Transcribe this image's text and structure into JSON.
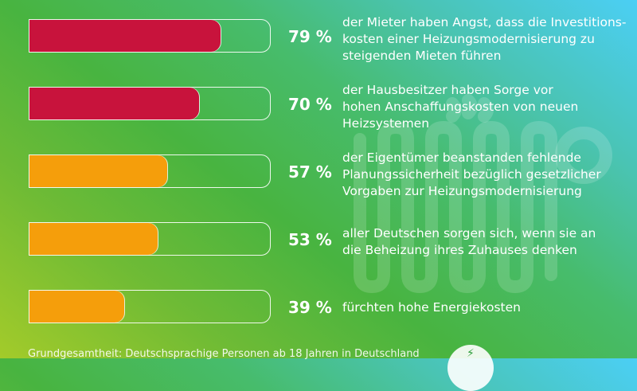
{
  "chart_data": {
    "type": "bar",
    "orientation": "horizontal",
    "xlim": [
      0,
      100
    ],
    "unit": "%",
    "categories": [
      "der Mieter haben Angst, dass die Investitions-\nkosten einer Heizungsmodernisierung zu\nsteigenden Mieten führen",
      "der Hausbesitzer haben Sorge vor\nhohen Anschaffungskosten von neuen\nHeizsystemen",
      "der Eigentümer beanstanden fehlende\nPlanungssicherheit bezüglich gesetzlicher\nVorgaben zur Heizungsmodernisierung",
      "aller Deutschen sorgen sich, wenn sie an\ndie Beheizung ihres Zuhauses denken",
      "fürchten hohe Energiekosten"
    ],
    "values": [
      79,
      70,
      57,
      53,
      39
    ],
    "value_labels": [
      "79 %",
      "70 %",
      "57 %",
      "53 %",
      "39 %"
    ],
    "bar_colors": [
      "#c8133c",
      "#c8133c",
      "#f59e0b",
      "#f59e0b",
      "#f59e0b"
    ],
    "grid": false
  },
  "footnote": "Grundgesamtheit: Deutschsprachige Personen ab 18 Jahren in Deutschland",
  "badge_icon": "lightning-icon",
  "colors": {
    "background_start": "#a3cb2a",
    "background_mid": "#48b440",
    "background_end": "#4bcff5"
  }
}
